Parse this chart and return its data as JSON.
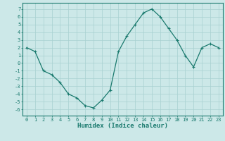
{
  "xlabel": "Humidex (Indice chaleur)",
  "x": [
    0,
    1,
    2,
    3,
    4,
    5,
    6,
    7,
    8,
    9,
    10,
    11,
    12,
    13,
    14,
    15,
    16,
    17,
    18,
    19,
    20,
    21,
    22,
    23
  ],
  "y": [
    2,
    1.5,
    -1,
    -1.5,
    -2.5,
    -4,
    -4.5,
    -5.5,
    -5.8,
    -4.8,
    -3.5,
    1.5,
    3.5,
    5,
    6.5,
    7,
    6,
    4.5,
    3,
    1,
    -0.5,
    2,
    2.5,
    2
  ],
  "line_color": "#1a7a6e",
  "marker": "+",
  "marker_size": 3,
  "marker_color": "#1a7a6e",
  "bg_color": "#cce8e8",
  "grid_color": "#a8d0d0",
  "xlim": [
    -0.5,
    23.5
  ],
  "ylim": [
    -6.8,
    7.8
  ],
  "yticks": [
    -6,
    -5,
    -4,
    -3,
    -2,
    -1,
    0,
    1,
    2,
    3,
    4,
    5,
    6,
    7
  ],
  "xticks": [
    0,
    1,
    2,
    3,
    4,
    5,
    6,
    7,
    8,
    9,
    10,
    11,
    12,
    13,
    14,
    15,
    16,
    17,
    18,
    19,
    20,
    21,
    22,
    23
  ],
  "axis_color": "#1a7a6e",
  "tick_fontsize": 5.0,
  "label_fontsize": 6.5
}
